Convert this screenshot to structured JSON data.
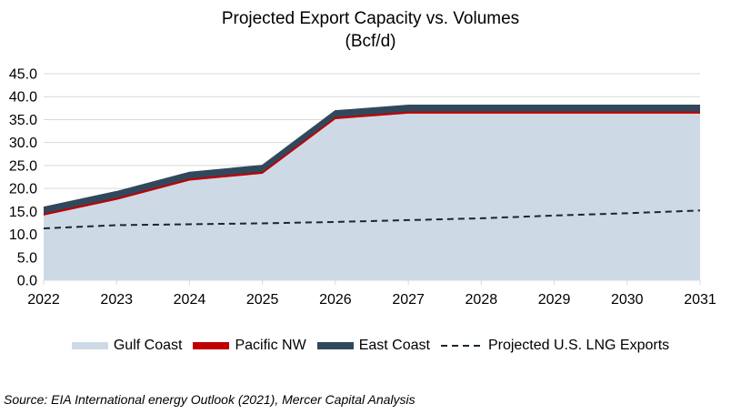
{
  "title": {
    "line1": "Projected Export Capacity vs. Volumes",
    "line2": "(Bcf/d)"
  },
  "source": "Source: EIA International energy Outlook (2021), Mercer Capital Analysis",
  "colors": {
    "gulf_coast": "#CDDAE6",
    "pacific_nw": "#C00000",
    "east_coast": "#31485C",
    "projected_line": "#1A2733",
    "gridline": "#D9D9D9",
    "axis_text": "#000000",
    "background": "#FFFFFF"
  },
  "legend": [
    {
      "label": "Gulf Coast",
      "swatch": "area",
      "color_key": "gulf_coast"
    },
    {
      "label": "Pacific NW",
      "swatch": "area",
      "color_key": "pacific_nw"
    },
    {
      "label": "East Coast",
      "swatch": "area",
      "color_key": "east_coast"
    },
    {
      "label": "Projected U.S. LNG Exports",
      "swatch": "dashed-line",
      "color_key": "projected_line"
    }
  ],
  "chart_data": {
    "type": "area",
    "stacked": true,
    "title": "Projected Export Capacity vs. Volumes (Bcf/d)",
    "xlabel": "",
    "ylabel": "",
    "categories": [
      "2022",
      "2023",
      "2024",
      "2025",
      "2026",
      "2027",
      "2028",
      "2029",
      "2030",
      "2031"
    ],
    "series": [
      {
        "name": "Gulf Coast",
        "type": "area",
        "color_key": "gulf_coast",
        "values": [
          14.1,
          17.5,
          21.7,
          23.2,
          35.1,
          36.3,
          36.3,
          36.3,
          36.3,
          36.3
        ]
      },
      {
        "name": "Pacific NW",
        "type": "area",
        "color_key": "pacific_nw",
        "values": [
          0.3,
          0.3,
          0.3,
          0.3,
          0.3,
          0.3,
          0.3,
          0.3,
          0.3,
          0.3
        ]
      },
      {
        "name": "East Coast",
        "type": "area",
        "color_key": "east_coast",
        "values": [
          1.4,
          1.4,
          1.4,
          1.4,
          1.4,
          1.4,
          1.4,
          1.4,
          1.4,
          1.4
        ]
      },
      {
        "name": "Projected U.S. LNG Exports",
        "type": "dashed-line",
        "color_key": "projected_line",
        "values": [
          11.3,
          12.0,
          12.2,
          12.4,
          12.7,
          13.1,
          13.5,
          14.1,
          14.6,
          15.2
        ]
      }
    ],
    "stacked_totals": [
      15.8,
      19.2,
      23.4,
      24.9,
      36.8,
      38.0,
      38.0,
      38.0,
      38.0,
      38.0
    ],
    "ylim": [
      0,
      45
    ],
    "ytick_step": 5,
    "ytick_format": "one-decimal",
    "grid": true,
    "legend_position": "bottom"
  }
}
